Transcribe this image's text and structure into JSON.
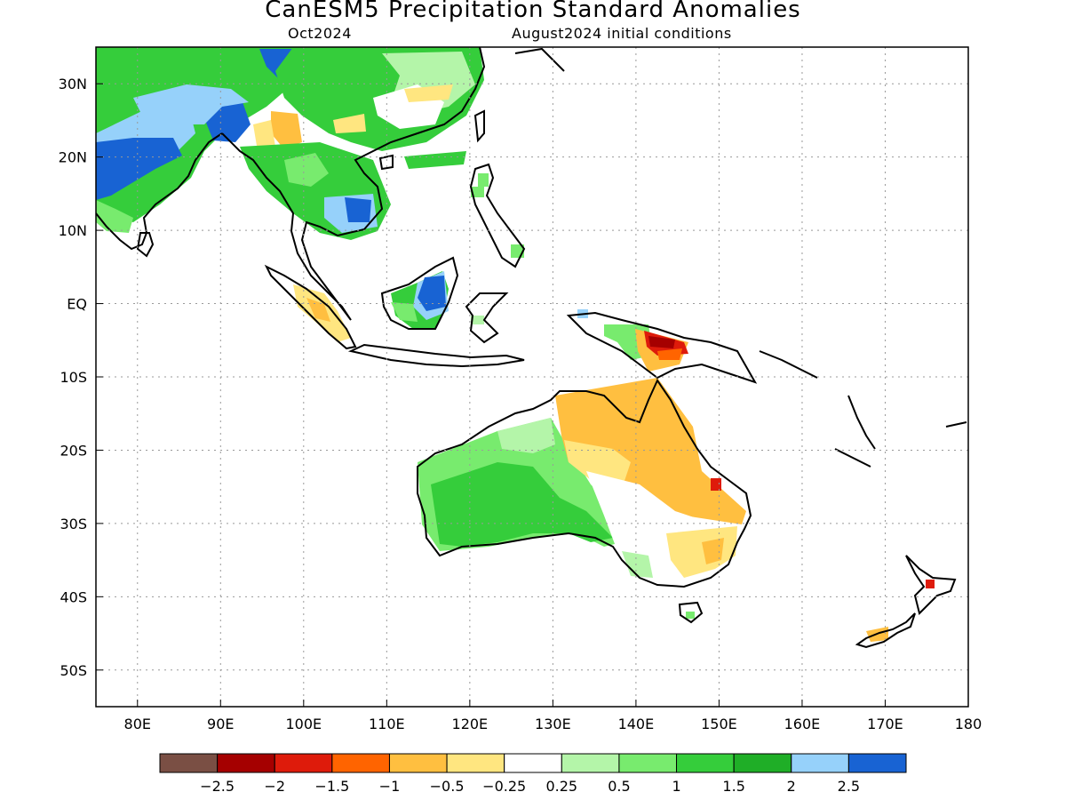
{
  "title": "CanESM5 Precipitation Standard Anomalies",
  "subtitle_left": "Oct2024",
  "subtitle_right": "August2024 initial conditions",
  "map": {
    "lon_range": [
      75,
      180
    ],
    "lat_range": [
      -55,
      35
    ],
    "grid_lines": "dotted",
    "lat_ticks": [
      {
        "lat": 30,
        "label": "30N"
      },
      {
        "lat": 20,
        "label": "20N"
      },
      {
        "lat": 10,
        "label": "10N"
      },
      {
        "lat": 0,
        "label": "EQ"
      },
      {
        "lat": -10,
        "label": "10S"
      },
      {
        "lat": -20,
        "label": "20S"
      },
      {
        "lat": -30,
        "label": "30S"
      },
      {
        "lat": -40,
        "label": "40S"
      },
      {
        "lat": -50,
        "label": "50S"
      }
    ],
    "lon_ticks": [
      {
        "lon": 80,
        "label": "80E"
      },
      {
        "lon": 90,
        "label": "90E"
      },
      {
        "lon": 100,
        "label": "100E"
      },
      {
        "lon": 110,
        "label": "110E"
      },
      {
        "lon": 120,
        "label": "120E"
      },
      {
        "lon": 130,
        "label": "130E"
      },
      {
        "lon": 140,
        "label": "140E"
      },
      {
        "lon": 150,
        "label": "150E"
      },
      {
        "lon": 160,
        "label": "160E"
      },
      {
        "lon": 170,
        "label": "170E"
      },
      {
        "lon": 180,
        "label": "180"
      }
    ]
  },
  "colorbar": {
    "colors": [
      "#7a4f44",
      "#a50000",
      "#de1b0b",
      "#ff6400",
      "#ffbf40",
      "#ffe680",
      "#ffffff",
      "#b4f5a9",
      "#78eb6e",
      "#35cd3b",
      "#1fae27",
      "#96d1fa",
      "#1863d3"
    ],
    "labels": [
      "-2.5",
      "-2",
      "-1.5",
      "-1",
      "-0.5",
      "-0.25",
      "0.25",
      "0.5",
      "1",
      "1.5",
      "2",
      "2.5"
    ]
  },
  "anomaly_regions": [
    {
      "region": "Northern India / Bangladesh",
      "level": "1.5"
    },
    {
      "region": "Eastern India",
      "level": "2.5"
    },
    {
      "region": "Tibetan Plateau / Southwest China",
      "level": "2.5"
    },
    {
      "region": "South China",
      "level": "1.5"
    },
    {
      "region": "Myanmar",
      "level": "-0.5"
    },
    {
      "region": "Indochina",
      "level": "1.5"
    },
    {
      "region": "Cambodia / South Vietnam",
      "level": "2.5"
    },
    {
      "region": "Borneo",
      "level": "2.5"
    },
    {
      "region": "Sumatra",
      "level": "-0.5"
    },
    {
      "region": "Philippines",
      "level": "1"
    },
    {
      "region": "New Guinea (west)",
      "level": "1"
    },
    {
      "region": "New Guinea (central)",
      "level": "-1.5"
    },
    {
      "region": "Western Australia",
      "level": "1"
    },
    {
      "region": "Northern Territory / Queensland",
      "level": "-0.5"
    },
    {
      "region": "Southeast Australia",
      "level": "-0.25"
    },
    {
      "region": "Tasmania",
      "level": "1"
    },
    {
      "region": "New Zealand North Island",
      "level": "-1.5"
    },
    {
      "region": "New Zealand South Island",
      "level": "-0.5"
    }
  ]
}
